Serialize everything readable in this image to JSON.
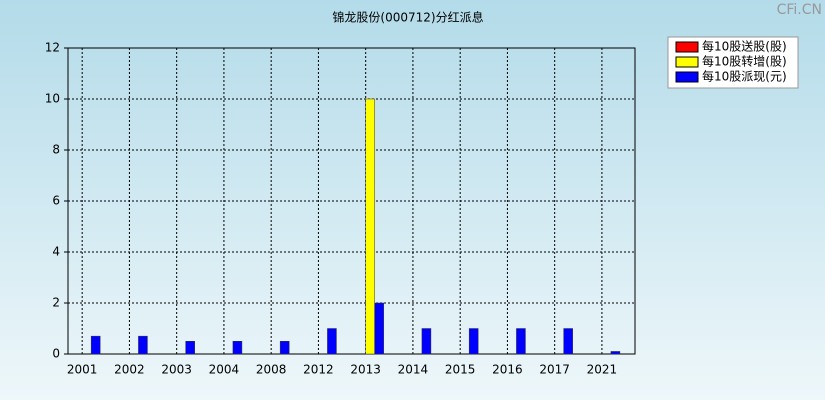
{
  "chart_data": {
    "type": "bar",
    "title": "锦龙股份(000712)分红派息",
    "watermark": "CFi.CN",
    "categories": [
      "2001",
      "2002",
      "2003",
      "2004",
      "2008",
      "2012",
      "2013",
      "2014",
      "2015",
      "2016",
      "2017",
      "2021"
    ],
    "series": [
      {
        "name": "每10股送股(股)",
        "color": "#ff0000",
        "values": [
          0,
          0,
          0,
          0,
          0,
          0,
          0,
          0,
          0,
          0,
          0,
          0
        ]
      },
      {
        "name": "每10股转增(股)",
        "color": "#ffff00",
        "values": [
          0,
          0,
          0,
          0,
          0,
          0,
          10,
          0,
          0,
          0,
          0,
          0
        ]
      },
      {
        "name": "每10股派现(元)",
        "color": "#0000ff",
        "values": [
          0.7,
          0.7,
          0.5,
          0.5,
          0.5,
          1,
          2,
          1,
          1,
          1,
          1,
          0.1
        ]
      }
    ],
    "ylim": [
      0,
      12
    ],
    "yticks": [
      0,
      2,
      4,
      6,
      8,
      10,
      12
    ],
    "grid": true,
    "legend": "top-right"
  }
}
